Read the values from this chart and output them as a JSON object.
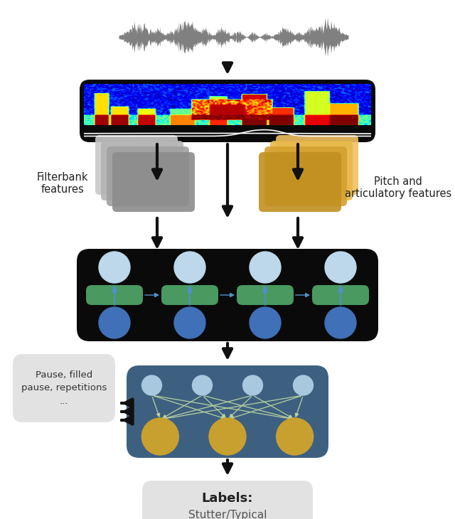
{
  "fig_width": 6.4,
  "fig_height": 7.3,
  "bg_color": "#ffffff",
  "spectrogram_bg": "#0a0a0a",
  "lstm_bg": "#0a0a0a",
  "nn_bg": "#3d6080",
  "label_bg": "#e2e2e2",
  "pause_bg": "#e2e2e2",
  "filterbank_colors": [
    "#c8c8c8",
    "#b4b4b4",
    "#a0a0a0",
    "#8c8c8c"
  ],
  "pitch_colors": [
    "#f0c060",
    "#e8b848",
    "#d4a030",
    "#c09020"
  ],
  "lstm_green": "#4a9960",
  "lstm_blue_top": "#bcd8ea",
  "lstm_blue_bot": "#4070b8",
  "lstm_arrow_color": "#5090c8",
  "nn_output_color": "#c8a030",
  "nn_hidden_color": "#a8c8e0",
  "nn_line_color": "#b8d0a0",
  "arrow_color": "#101010",
  "waveform_color": "#808080",
  "title": "Labels:",
  "subtitle": "Stutter/Typical",
  "pause_text": "Pause, filled\npause, repetitions\n...",
  "filterbank_label": "Filterbank\nfeatures",
  "pitch_label": "Pitch and\narticulatory features"
}
